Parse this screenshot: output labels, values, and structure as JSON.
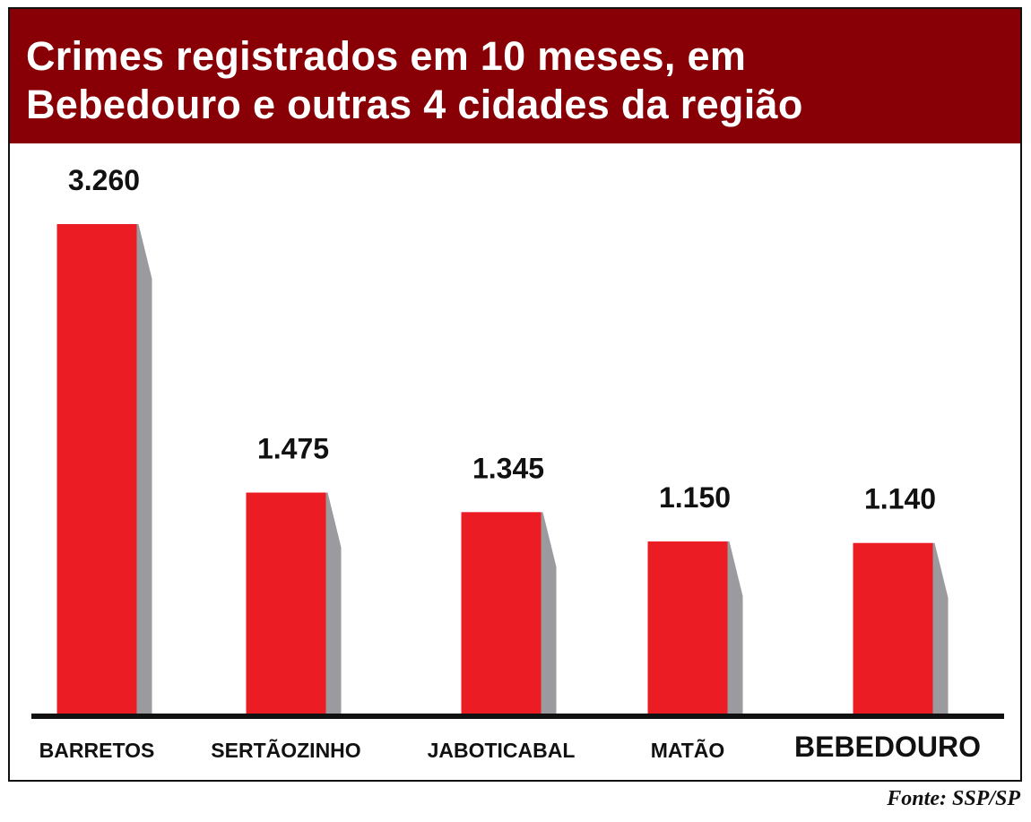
{
  "chart_data": {
    "type": "bar",
    "title_lines": [
      "Crimes registrados em 10 meses, em",
      "Bebedouro e outras 4 cidades da região"
    ],
    "categories": [
      "BARRETOS",
      "SERTÃOZINHO",
      "JABOTICABAL",
      "MATÃO",
      "BEBEDOURO"
    ],
    "values": [
      3260,
      1475,
      1345,
      1150,
      1140
    ],
    "value_labels": [
      "3.260",
      "1.475",
      "1.345",
      "1.150",
      "1.140"
    ],
    "highlighted_category": "BEBEDOURO",
    "xlabel": "",
    "ylabel": "",
    "ylim": [
      0,
      3260
    ],
    "grid": false,
    "legend": "none"
  },
  "source": "Fonte: SSP/SP",
  "colors": {
    "title_background": "#880006",
    "bar": "#ec1c24",
    "bar_shadow": "#9a9a9f",
    "baseline": "#111111"
  }
}
